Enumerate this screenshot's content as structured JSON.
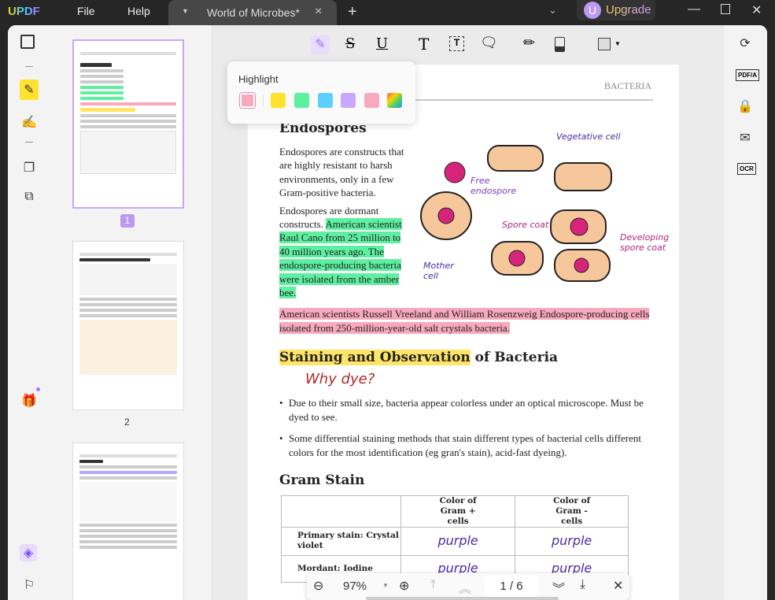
{
  "app": {
    "logo": "UPDF",
    "menu": [
      "File",
      "Help"
    ],
    "tab_title": "World of Microbes*",
    "tab_close": "×",
    "new_tab": "+",
    "upgrade": "Upgrade",
    "avatar_letter": "U"
  },
  "toolbar": {
    "icons": [
      "highlight-icon",
      "strikethrough-icon",
      "underline-icon",
      "text-icon",
      "textbox-icon",
      "comment-icon",
      "pencil-icon",
      "eraser-icon",
      "shape-icon"
    ]
  },
  "highlight_popup": {
    "title": "Highlight",
    "colors": [
      "#f8a9bd",
      "#ffe22e",
      "#5df0a0",
      "#5bd0ff",
      "#c9a6ff",
      "#f8a9bd",
      "rainbow"
    ]
  },
  "thumbnails": {
    "pages": [
      "1",
      "2"
    ]
  },
  "page": {
    "header": "BACTERIA",
    "h1": "Endospores",
    "p1": "Endospores are constructs that are highly resistant to harsh environments, only in a few Gram-positive bacteria.",
    "p2_plain": "Endospores are dormant constructs. ",
    "p2_green": "American scientist Raul Cano from 25 million to 40 million years ago. The endospore-producing bacteria were isolated from the amber bee.",
    "p3_pink": "American scientists Russell Vreeland and William Rosenzweig Endospore-producing cells isolated from 250-million-year-old salt crystals bacteria.",
    "diagram_labels": {
      "vegetative": "Vegetative cell",
      "free": "Free endospore",
      "spore_coat": "Spore coat",
      "developing": "Developing spore coat",
      "mother": "Mother cell"
    },
    "h2_highlight": "Staining and Observation",
    "h2_rest": " of Bacteria",
    "why": "Why dye?",
    "bullets": [
      "Due to their small size, bacteria appear colorless under an optical microscope. Must be dyed to see.",
      "Some differential staining methods that stain different types of bacterial cells different colors for the most identification (eg gran's stain), acid-fast dyeing)."
    ],
    "h3": "Gram Stain",
    "table": {
      "headers": [
        "",
        "Color of Gram + cells",
        "Color of Gram - cells"
      ],
      "rows": [
        [
          "Primary stain: Crystal violet",
          "purple",
          "purple"
        ],
        [
          "Mordant: Iodine",
          "purple",
          "purple"
        ]
      ]
    }
  },
  "zoombar": {
    "zoom": "97%",
    "page": "1 / 6"
  }
}
